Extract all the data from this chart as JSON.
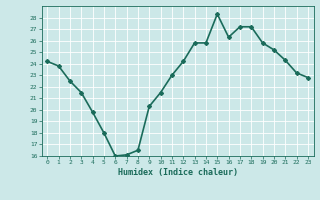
{
  "x": [
    0,
    1,
    2,
    3,
    4,
    5,
    6,
    7,
    8,
    9,
    10,
    11,
    12,
    13,
    14,
    15,
    16,
    17,
    18,
    19,
    20,
    21,
    22,
    23
  ],
  "y": [
    24.2,
    23.8,
    22.5,
    21.5,
    19.8,
    18.0,
    16.0,
    16.1,
    16.5,
    20.3,
    21.5,
    23.0,
    24.2,
    25.8,
    25.8,
    28.3,
    26.3,
    27.2,
    27.2,
    25.8,
    25.2,
    24.3,
    23.2,
    22.8
  ],
  "xlabel": "Humidex (Indice chaleur)",
  "ylim": [
    16,
    29
  ],
  "xlim": [
    -0.5,
    23.5
  ],
  "yticks": [
    16,
    17,
    18,
    19,
    20,
    21,
    22,
    23,
    24,
    25,
    26,
    27,
    28
  ],
  "xticks": [
    0,
    1,
    2,
    3,
    4,
    5,
    6,
    7,
    8,
    9,
    10,
    11,
    12,
    13,
    14,
    15,
    16,
    17,
    18,
    19,
    20,
    21,
    22,
    23
  ],
  "line_color": "#1a6b5a",
  "marker": "D",
  "marker_size": 2,
  "bg_color": "#cce8e8",
  "grid_color": "#ffffff",
  "tick_label_color": "#1a6b5a",
  "xlabel_color": "#1a6b5a",
  "line_width": 1.2
}
